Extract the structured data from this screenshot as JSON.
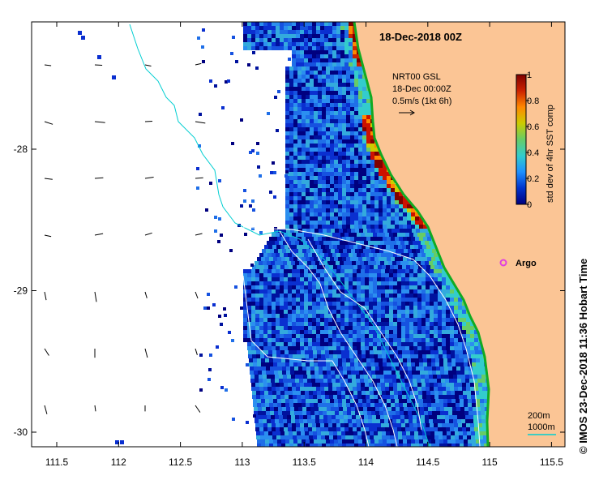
{
  "title": "18-Dec-2018 00Z",
  "product": {
    "line1": "NRT00 GSL",
    "line2": "18-Dec 00:00Z",
    "line3": "0.5m/s (1kt 6h)"
  },
  "colorbar": {
    "label": "std dev of 4hr SST comp",
    "ticks": [
      "0",
      "0.2",
      "0.4",
      "0.6",
      "0.8",
      "1"
    ],
    "colors": [
      "#00007f",
      "#0033cc",
      "#1e90ff",
      "#33cccc",
      "#66cc66",
      "#cccc00",
      "#ff8800",
      "#cc2200",
      "#7f0000"
    ]
  },
  "x_ticks": [
    "111.5",
    "112",
    "112.5",
    "113",
    "113.5",
    "114",
    "114.5",
    "115",
    "115.5"
  ],
  "y_ticks": [
    "-28",
    "-29",
    "-30"
  ],
  "argo_label": "Argo",
  "depth_legend": {
    "d200": "200m",
    "d1000": "1000m"
  },
  "credit": "©  IMOS 23-Dec-2018 11:36 Hobart Time",
  "colors": {
    "land": "#fbc595",
    "coast": "#11aa22",
    "isobath_200": "#00ced1",
    "argo": "#e040e0"
  }
}
